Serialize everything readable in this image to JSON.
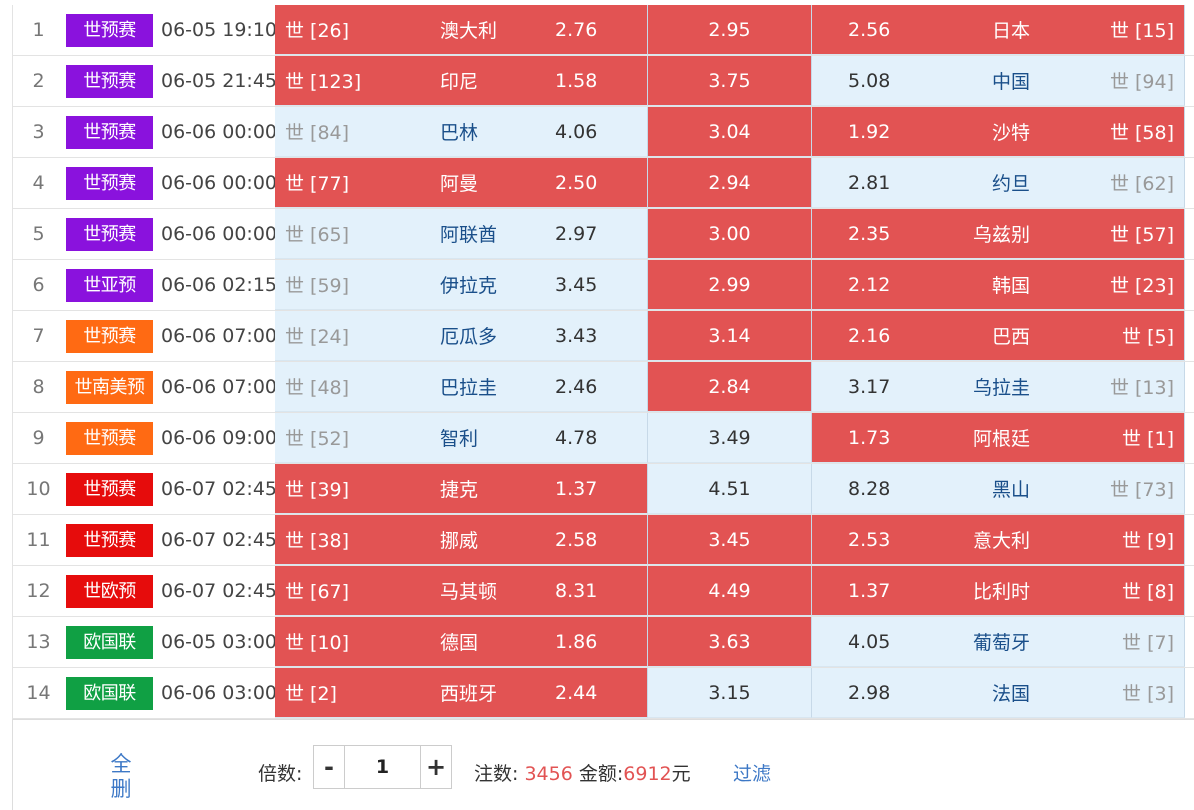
{
  "colors": {
    "hit": "#e25353",
    "miss": "#e3f1fb",
    "league_purple": "#8a12dd",
    "league_orange": "#ff6a13",
    "league_red": "#e60c0c",
    "league_green": "#10a044"
  },
  "matches": [
    {
      "num": "1",
      "league": "世预赛",
      "league_color": "#8a12dd",
      "time": "06-05 19:10",
      "home_rank": "世 [26]",
      "home_team": "澳大利",
      "home_odds": "2.76",
      "draw_odds": "2.95",
      "away_odds": "2.56",
      "away_team": "日本",
      "away_rank": "世 [15]",
      "hl": [
        "red",
        "red",
        "red"
      ]
    },
    {
      "num": "2",
      "league": "世预赛",
      "league_color": "#8a12dd",
      "time": "06-05 21:45",
      "home_rank": "世 [123]",
      "home_team": "印尼",
      "home_odds": "1.58",
      "draw_odds": "3.75",
      "away_odds": "5.08",
      "away_team": "中国",
      "away_rank": "世 [94]",
      "hl": [
        "red",
        "red",
        "blue"
      ]
    },
    {
      "num": "3",
      "league": "世预赛",
      "league_color": "#8a12dd",
      "time": "06-06 00:00",
      "home_rank": "世 [84]",
      "home_team": "巴林",
      "home_odds": "4.06",
      "draw_odds": "3.04",
      "away_odds": "1.92",
      "away_team": "沙特",
      "away_rank": "世 [58]",
      "hl": [
        "blue",
        "red",
        "red"
      ]
    },
    {
      "num": "4",
      "league": "世预赛",
      "league_color": "#8a12dd",
      "time": "06-06 00:00",
      "home_rank": "世 [77]",
      "home_team": "阿曼",
      "home_odds": "2.50",
      "draw_odds": "2.94",
      "away_odds": "2.81",
      "away_team": "约旦",
      "away_rank": "世 [62]",
      "hl": [
        "red",
        "red",
        "blue"
      ]
    },
    {
      "num": "5",
      "league": "世预赛",
      "league_color": "#8a12dd",
      "time": "06-06 00:00",
      "home_rank": "世 [65]",
      "home_team": "阿联酋",
      "home_odds": "2.97",
      "draw_odds": "3.00",
      "away_odds": "2.35",
      "away_team": "乌兹别",
      "away_rank": "世 [57]",
      "hl": [
        "blue",
        "red",
        "red"
      ]
    },
    {
      "num": "6",
      "league": "世亚预",
      "league_color": "#8a12dd",
      "time": "06-06 02:15",
      "home_rank": "世 [59]",
      "home_team": "伊拉克",
      "home_odds": "3.45",
      "draw_odds": "2.99",
      "away_odds": "2.12",
      "away_team": "韩国",
      "away_rank": "世 [23]",
      "hl": [
        "blue",
        "red",
        "red"
      ]
    },
    {
      "num": "7",
      "league": "世预赛",
      "league_color": "#ff6a13",
      "time": "06-06 07:00",
      "home_rank": "世 [24]",
      "home_team": "厄瓜多",
      "home_odds": "3.43",
      "draw_odds": "3.14",
      "away_odds": "2.16",
      "away_team": "巴西",
      "away_rank": "世 [5]",
      "hl": [
        "blue",
        "red",
        "red"
      ]
    },
    {
      "num": "8",
      "league": "世南美预",
      "league_color": "#ff6a13",
      "time": "06-06 07:00",
      "home_rank": "世 [48]",
      "home_team": "巴拉圭",
      "home_odds": "2.46",
      "draw_odds": "2.84",
      "away_odds": "3.17",
      "away_team": "乌拉圭",
      "away_rank": "世 [13]",
      "hl": [
        "blue",
        "red",
        "blue"
      ]
    },
    {
      "num": "9",
      "league": "世预赛",
      "league_color": "#ff6a13",
      "time": "06-06 09:00",
      "home_rank": "世 [52]",
      "home_team": "智利",
      "home_odds": "4.78",
      "draw_odds": "3.49",
      "away_odds": "1.73",
      "away_team": "阿根廷",
      "away_rank": "世 [1]",
      "hl": [
        "blue",
        "blue",
        "red"
      ]
    },
    {
      "num": "10",
      "league": "世预赛",
      "league_color": "#e60c0c",
      "time": "06-07 02:45",
      "home_rank": "世 [39]",
      "home_team": "捷克",
      "home_odds": "1.37",
      "draw_odds": "4.51",
      "away_odds": "8.28",
      "away_team": "黑山",
      "away_rank": "世 [73]",
      "hl": [
        "red",
        "blue",
        "blue"
      ]
    },
    {
      "num": "11",
      "league": "世预赛",
      "league_color": "#e60c0c",
      "time": "06-07 02:45",
      "home_rank": "世 [38]",
      "home_team": "挪威",
      "home_odds": "2.58",
      "draw_odds": "3.45",
      "away_odds": "2.53",
      "away_team": "意大利",
      "away_rank": "世 [9]",
      "hl": [
        "red",
        "red",
        "red"
      ]
    },
    {
      "num": "12",
      "league": "世欧预",
      "league_color": "#e60c0c",
      "time": "06-07 02:45",
      "home_rank": "世 [67]",
      "home_team": "马其顿",
      "home_odds": "8.31",
      "draw_odds": "4.49",
      "away_odds": "1.37",
      "away_team": "比利时",
      "away_rank": "世 [8]",
      "hl": [
        "red",
        "red",
        "red"
      ]
    },
    {
      "num": "13",
      "league": "欧国联",
      "league_color": "#10a044",
      "time": "06-05 03:00",
      "home_rank": "世 [10]",
      "home_team": "德国",
      "home_odds": "1.86",
      "draw_odds": "3.63",
      "away_odds": "4.05",
      "away_team": "葡萄牙",
      "away_rank": "世 [7]",
      "hl": [
        "red",
        "red",
        "blue"
      ]
    },
    {
      "num": "14",
      "league": "欧国联",
      "league_color": "#10a044",
      "time": "06-06 03:00",
      "home_rank": "世 [2]",
      "home_team": "西班牙",
      "home_odds": "2.44",
      "draw_odds": "3.15",
      "away_odds": "2.98",
      "away_team": "法国",
      "away_rank": "世 [3]",
      "hl": [
        "red",
        "blue",
        "blue"
      ]
    }
  ],
  "footer": {
    "clear_label": "全删",
    "multiplier_label": "倍数:",
    "minus_label": "-",
    "multiplier_value": "1",
    "plus_label": "+",
    "bets_label": "注数:",
    "bets_value": "3456",
    "amount_label": "金额:",
    "amount_value": "6912",
    "amount_unit": "元",
    "filter_label": "过滤"
  }
}
